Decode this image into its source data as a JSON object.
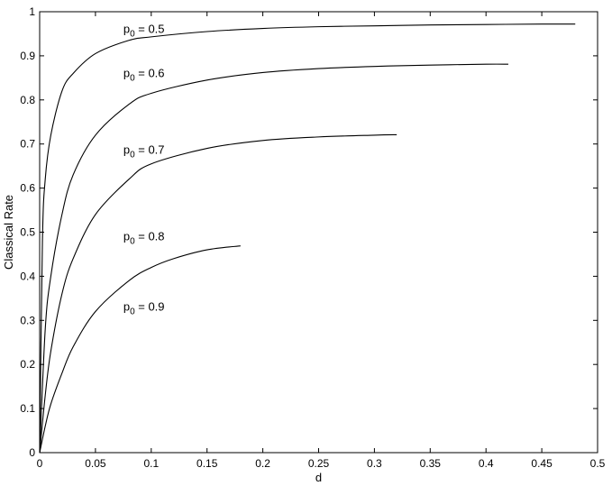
{
  "chart_data": {
    "type": "line",
    "xlabel": "d",
    "ylabel": "Classical Rate",
    "xlim": [
      0,
      0.5
    ],
    "ylim": [
      0,
      1
    ],
    "grid": false,
    "legend": "none",
    "x_ticks": [
      "0",
      "0.05",
      "0.1",
      "0.15",
      "0.2",
      "0.25",
      "0.3",
      "0.35",
      "0.4",
      "0.45",
      "0.5"
    ],
    "y_ticks": [
      "0",
      "0.1",
      "0.2",
      "0.3",
      "0.4",
      "0.5",
      "0.6",
      "0.7",
      "0.8",
      "0.9",
      "1"
    ],
    "series": [
      {
        "label_main": "p",
        "label_sub": "0",
        "label_rest": " = 0.5",
        "label_x": 0.075,
        "label_y": 0.952,
        "points": [
          [
            0,
            0
          ],
          [
            0.0025,
            0.48
          ],
          [
            0.005,
            0.62
          ],
          [
            0.01,
            0.72
          ],
          [
            0.02,
            0.82
          ],
          [
            0.03,
            0.86
          ],
          [
            0.05,
            0.905
          ],
          [
            0.08,
            0.935
          ],
          [
            0.1,
            0.943
          ],
          [
            0.15,
            0.955
          ],
          [
            0.2,
            0.962
          ],
          [
            0.25,
            0.966
          ],
          [
            0.3,
            0.968
          ],
          [
            0.35,
            0.97
          ],
          [
            0.4,
            0.971
          ],
          [
            0.45,
            0.972
          ],
          [
            0.48,
            0.972
          ]
        ]
      },
      {
        "label_main": "p",
        "label_sub": "0",
        "label_rest": " = 0.6",
        "label_x": 0.075,
        "label_y": 0.852,
        "points": [
          [
            0,
            0
          ],
          [
            0.005,
            0.28
          ],
          [
            0.01,
            0.4
          ],
          [
            0.02,
            0.54
          ],
          [
            0.03,
            0.63
          ],
          [
            0.05,
            0.72
          ],
          [
            0.08,
            0.79
          ],
          [
            0.1,
            0.815
          ],
          [
            0.15,
            0.845
          ],
          [
            0.2,
            0.862
          ],
          [
            0.25,
            0.871
          ],
          [
            0.3,
            0.876
          ],
          [
            0.35,
            0.879
          ],
          [
            0.4,
            0.881
          ],
          [
            0.42,
            0.881
          ]
        ]
      },
      {
        "label_main": "p",
        "label_sub": "0",
        "label_rest": " = 0.7",
        "label_x": 0.075,
        "label_y": 0.678,
        "points": [
          [
            0,
            0
          ],
          [
            0.005,
            0.13
          ],
          [
            0.01,
            0.23
          ],
          [
            0.02,
            0.36
          ],
          [
            0.03,
            0.44
          ],
          [
            0.05,
            0.54
          ],
          [
            0.08,
            0.62
          ],
          [
            0.1,
            0.655
          ],
          [
            0.15,
            0.69
          ],
          [
            0.2,
            0.708
          ],
          [
            0.25,
            0.716
          ],
          [
            0.3,
            0.72
          ],
          [
            0.32,
            0.721
          ]
        ]
      },
      {
        "label_main": "p",
        "label_sub": "0",
        "label_rest": " = 0.8",
        "label_x": 0.075,
        "label_y": 0.482,
        "points": [
          [
            0,
            0
          ],
          [
            0.005,
            0.06
          ],
          [
            0.01,
            0.11
          ],
          [
            0.02,
            0.18
          ],
          [
            0.03,
            0.24
          ],
          [
            0.05,
            0.32
          ],
          [
            0.08,
            0.39
          ],
          [
            0.1,
            0.42
          ],
          [
            0.12,
            0.44
          ],
          [
            0.15,
            0.46
          ],
          [
            0.18,
            0.469
          ]
        ]
      },
      {
        "label_main": "p",
        "label_sub": "0",
        "label_rest": " = 0.9",
        "label_x": 0.075,
        "label_y": 0.322,
        "points": []
      }
    ]
  }
}
